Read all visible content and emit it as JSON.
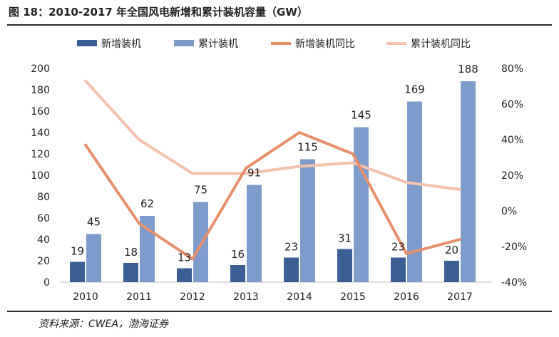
{
  "title": "图 18：2010-2017 年全国风电新增和累计装机容量（GW）",
  "source": "资料来源：CWEA，渤海证券",
  "chart_data": {
    "type": "bar",
    "categories": [
      "2010",
      "2011",
      "2012",
      "2013",
      "2014",
      "2015",
      "2016",
      "2017"
    ],
    "series": [
      {
        "name": "新增装机",
        "type": "bar",
        "axis": "left",
        "color": "#3a5f94",
        "values": [
          19,
          18,
          13,
          16,
          23,
          31,
          23,
          20
        ]
      },
      {
        "name": "累计装机",
        "type": "bar",
        "axis": "left",
        "color": "#7d9ccc",
        "values": [
          45,
          62,
          75,
          91,
          115,
          145,
          169,
          188
        ]
      },
      {
        "name": "新增装机同比",
        "type": "line",
        "axis": "right",
        "color": "#e8906b",
        "values": [
          37,
          -7,
          -27,
          24,
          44,
          32,
          -24,
          -16
        ]
      },
      {
        "name": "累计装机同比",
        "type": "line",
        "axis": "right",
        "color": "#f4c2ad",
        "values": [
          73,
          40,
          21,
          21,
          25,
          27,
          16,
          12
        ]
      }
    ],
    "y_left": {
      "min": 0,
      "max": 200,
      "step": 20,
      "ticks": [
        "0",
        "20",
        "40",
        "60",
        "80",
        "100",
        "120",
        "140",
        "160",
        "180",
        "200"
      ]
    },
    "y_right": {
      "min": -40,
      "max": 80,
      "step": 20,
      "ticks": [
        "-40%",
        "-20%",
        "0%",
        "20%",
        "40%",
        "60%",
        "80%"
      ]
    },
    "legend_position": "top",
    "grid": false
  }
}
